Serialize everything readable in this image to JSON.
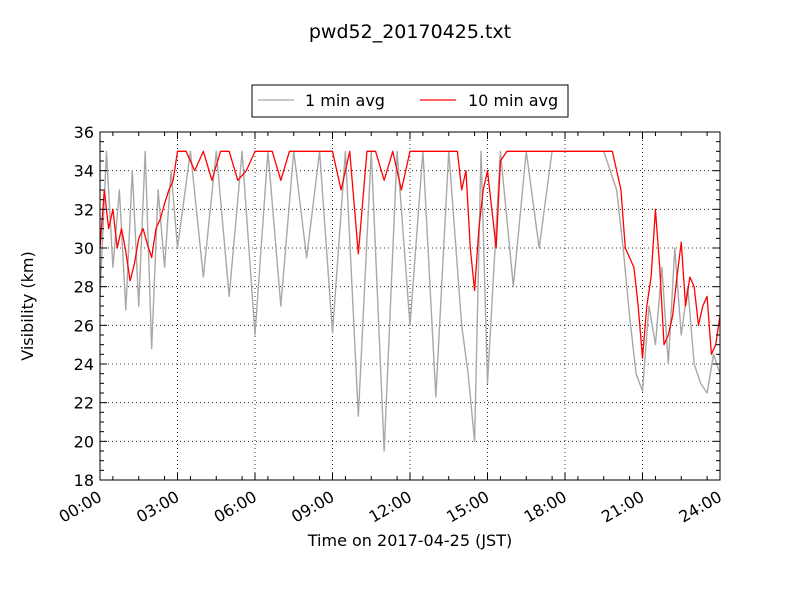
{
  "chart_data": {
    "type": "line",
    "title": "pwd52_20170425.txt",
    "xlabel": "Time on 2017-04-25 (JST)",
    "ylabel": "Visibility (km)",
    "xlim": [
      "00:00",
      "24:00"
    ],
    "ylim": [
      18,
      36
    ],
    "x_tick_labels": [
      "00:00",
      "03:00",
      "06:00",
      "09:00",
      "12:00",
      "15:00",
      "18:00",
      "21:00",
      "24:00"
    ],
    "y_tick_labels": [
      "18",
      "20",
      "22",
      "24",
      "26",
      "28",
      "30",
      "32",
      "34",
      "36"
    ],
    "grid": true,
    "legend_position": "top-center",
    "series": [
      {
        "name": "1 min avg",
        "color": "#a8a8a8",
        "x": [
          "00:00",
          "00:15",
          "00:30",
          "00:45",
          "01:00",
          "01:15",
          "01:30",
          "01:45",
          "02:00",
          "02:15",
          "02:30",
          "02:45",
          "03:00",
          "03:30",
          "04:00",
          "04:30",
          "05:00",
          "05:30",
          "06:00",
          "06:30",
          "07:00",
          "07:30",
          "08:00",
          "08:30",
          "09:00",
          "09:30",
          "10:00",
          "10:30",
          "11:00",
          "11:30",
          "12:00",
          "12:30",
          "13:00",
          "13:30",
          "14:00",
          "14:15",
          "14:30",
          "14:45",
          "15:00",
          "15:30",
          "16:00",
          "16:30",
          "17:00",
          "17:30",
          "18:00",
          "18:30",
          "19:00",
          "19:30",
          "20:00",
          "20:15",
          "20:30",
          "20:45",
          "21:00",
          "21:15",
          "21:30",
          "21:45",
          "22:00",
          "22:15",
          "22:30",
          "22:45",
          "23:00",
          "23:15",
          "23:30",
          "23:45",
          "24:00"
        ],
        "y": [
          27.5,
          35,
          29,
          33,
          26.8,
          34,
          27,
          35,
          24.8,
          33,
          29,
          34,
          30,
          35,
          28.5,
          35,
          27.5,
          35,
          25.5,
          35,
          27,
          35,
          29.5,
          35,
          25.6,
          35,
          21.3,
          35,
          19.5,
          35,
          26,
          35,
          22.3,
          35,
          26,
          23.5,
          20,
          35,
          23,
          35,
          28,
          35,
          30,
          35,
          35,
          35,
          35,
          35,
          33,
          30,
          26.5,
          23.5,
          22.6,
          27,
          25,
          29,
          24,
          30,
          25.5,
          28,
          24,
          23,
          22.5,
          24.5,
          23.5
        ]
      },
      {
        "name": "10 min avg",
        "color": "#ff0000",
        "x": [
          "00:00",
          "00:10",
          "00:20",
          "00:30",
          "00:40",
          "00:50",
          "01:00",
          "01:10",
          "01:20",
          "01:30",
          "01:40",
          "01:50",
          "02:00",
          "02:10",
          "02:20",
          "02:30",
          "02:40",
          "02:50",
          "03:00",
          "03:20",
          "03:40",
          "04:00",
          "04:20",
          "04:40",
          "05:00",
          "05:20",
          "05:40",
          "06:00",
          "06:20",
          "06:40",
          "07:00",
          "07:20",
          "07:40",
          "08:00",
          "08:30",
          "09:00",
          "09:20",
          "09:40",
          "10:00",
          "10:20",
          "10:40",
          "11:00",
          "11:20",
          "11:40",
          "12:00",
          "12:30",
          "13:00",
          "13:30",
          "13:50",
          "14:00",
          "14:10",
          "14:20",
          "14:30",
          "14:40",
          "14:50",
          "15:00",
          "15:10",
          "15:20",
          "15:30",
          "15:45",
          "16:00",
          "16:30",
          "17:00",
          "17:30",
          "18:00",
          "18:30",
          "19:00",
          "19:30",
          "19:40",
          "19:50",
          "20:00",
          "20:10",
          "20:20",
          "20:30",
          "20:40",
          "20:50",
          "21:00",
          "21:10",
          "21:20",
          "21:30",
          "21:40",
          "21:50",
          "22:00",
          "22:10",
          "22:20",
          "22:30",
          "22:40",
          "22:50",
          "23:00",
          "23:10",
          "23:20",
          "23:30",
          "23:40",
          "23:50",
          "24:00"
        ],
        "y": [
          30,
          33,
          31,
          32,
          30,
          31,
          29.8,
          28.3,
          29.2,
          30.5,
          31,
          30.2,
          29.5,
          31,
          31.5,
          32.3,
          33,
          33.5,
          35,
          35,
          34,
          35,
          33.5,
          35,
          35,
          33.5,
          34,
          35,
          35,
          35,
          33.5,
          35,
          35,
          35,
          35,
          35,
          33,
          35,
          29.7,
          35,
          35,
          33.5,
          35,
          33,
          35,
          35,
          35,
          35,
          35,
          33,
          34,
          30,
          27.8,
          31,
          33,
          34,
          32,
          30,
          34.5,
          35,
          35,
          35,
          35,
          35,
          35,
          35,
          35,
          35,
          35,
          35,
          34,
          33,
          30,
          29.5,
          29,
          27,
          24.3,
          27,
          28.5,
          32,
          29,
          25,
          25.5,
          26.5,
          28.5,
          30.3,
          27,
          28.5,
          28,
          26,
          27,
          27.5,
          24.5,
          25,
          26.5
        ]
      }
    ]
  }
}
